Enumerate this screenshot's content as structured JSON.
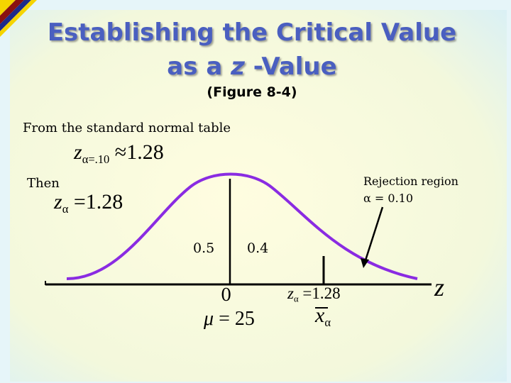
{
  "title": {
    "line1": "Establishing the Critical Value",
    "line2_prefix": "as a ",
    "line2_var": "z",
    "line2_suffix": " -Value",
    "subtitle": "(Figure 8-4)"
  },
  "text": {
    "from_table": "From the standard normal table",
    "then": "Then",
    "rejection_region": "Rejection region",
    "alpha_eq": "α = 0.10"
  },
  "equations": {
    "eq1": {
      "var": "z",
      "subscript": "α=.10",
      "rel": "≈",
      "value": "1.28"
    },
    "eq2": {
      "var": "z",
      "subscript": "α",
      "rel": "=",
      "value": "1.28"
    }
  },
  "figure": {
    "area_left": "0.5",
    "area_right": "0.4",
    "zero_label": "0",
    "critical_label": {
      "var": "z",
      "subscript": "α",
      "rel": "=",
      "value": "1.28"
    },
    "mean_label": {
      "var": "μ",
      "rel": "=",
      "value": "25"
    },
    "critical_x_label": {
      "var": "x",
      "subscript": "α"
    },
    "axis_label": "z",
    "colors": {
      "curve": "#8a2be2",
      "title": "#4a5fc0",
      "background": "#fffcd6"
    }
  }
}
